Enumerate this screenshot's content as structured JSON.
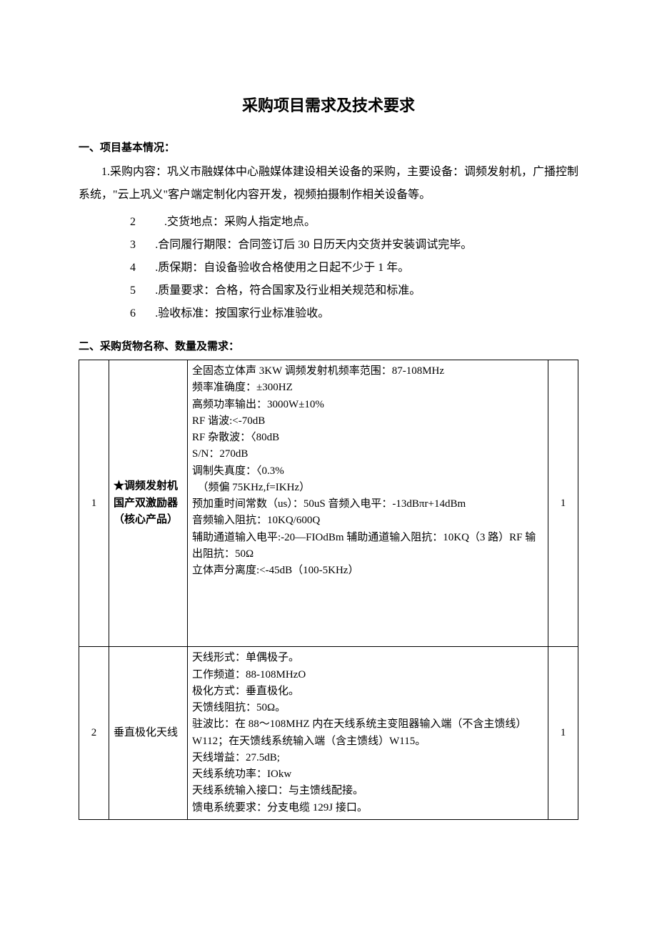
{
  "title": "采购项目需求及技术要求",
  "section1_heading": "一、项目基本情况：",
  "para1": "1.采购内容：巩义市融媒体中心融媒体建设相关设备的采购，主要设备：调频发射机，广播控制系统，\"云上巩义\"客户端定制化内容开发，视频拍摄制作相关设备等。",
  "list": [
    {
      "n": "2",
      "t": ".交货地点：采购人指定地点。"
    },
    {
      "n": "3",
      "t": ".合同履行期限：合同签订后 30 日历天内交货并安装调试完毕。"
    },
    {
      "n": "4",
      "t": ".质保期：自设备验收合格使用之日起不少于 1 年。"
    },
    {
      "n": "5",
      "t": ".质量要求：合格，符合国家及行业相关规范和标准。"
    },
    {
      "n": "6",
      "t": ".验收标准：按国家行业标准验收。"
    }
  ],
  "section2_heading": "二、采购货物名称、数量及需求：",
  "rows": [
    {
      "idx": "1",
      "name_l1": "★调频发射机",
      "name_l2": "国产双激励器",
      "name_l3": "（核心产品）",
      "spec": [
        "全固态立体声 3KW 调频发射机频率范围：87-108MHz",
        "频率准确度：±300HZ",
        "高频功率输出：3000W±10%",
        "RF 谐波:<-70dB",
        "RF 杂散波：〈80dB",
        "S/N：270dB",
        "调制失真度：〈0.3%",
        "　（频偏 75KHz,f=IKHz）",
        "预加重时间常数（us）：50uS 音频入电平：-13dBπr+14dBm",
        "音频输入阻抗：10KQ/600Q",
        "辅助通道输入电平:-20—FIOdBm 辅助通道输入阻抗：10KQ（3 路）RF 输出阻抗：50Ω",
        "立体声分离度:<-45dB（100-5KHz）"
      ],
      "qty": "1"
    },
    {
      "idx": "2",
      "name_l1": "垂直极化天线",
      "name_l2": "",
      "name_l3": "",
      "spec": [
        "天线形式：单偶极子。",
        "工作频道：88-108MHzO",
        "极化方式：垂直极化。",
        "天馈线阻抗：50Ω。",
        "驻波比：在 88～108MHZ 内在天线系统主变阻器输入端（不含主馈线）W112；在天馈线系统输入端（含主馈线）W115。",
        "天线增益：27.5dB;",
        "天线系统功率：IOkw",
        "天线系统输入接口：与主馈线配接。",
        "馈电系统要求：分支电缆 129J 接口。"
      ],
      "qty": "1"
    }
  ]
}
